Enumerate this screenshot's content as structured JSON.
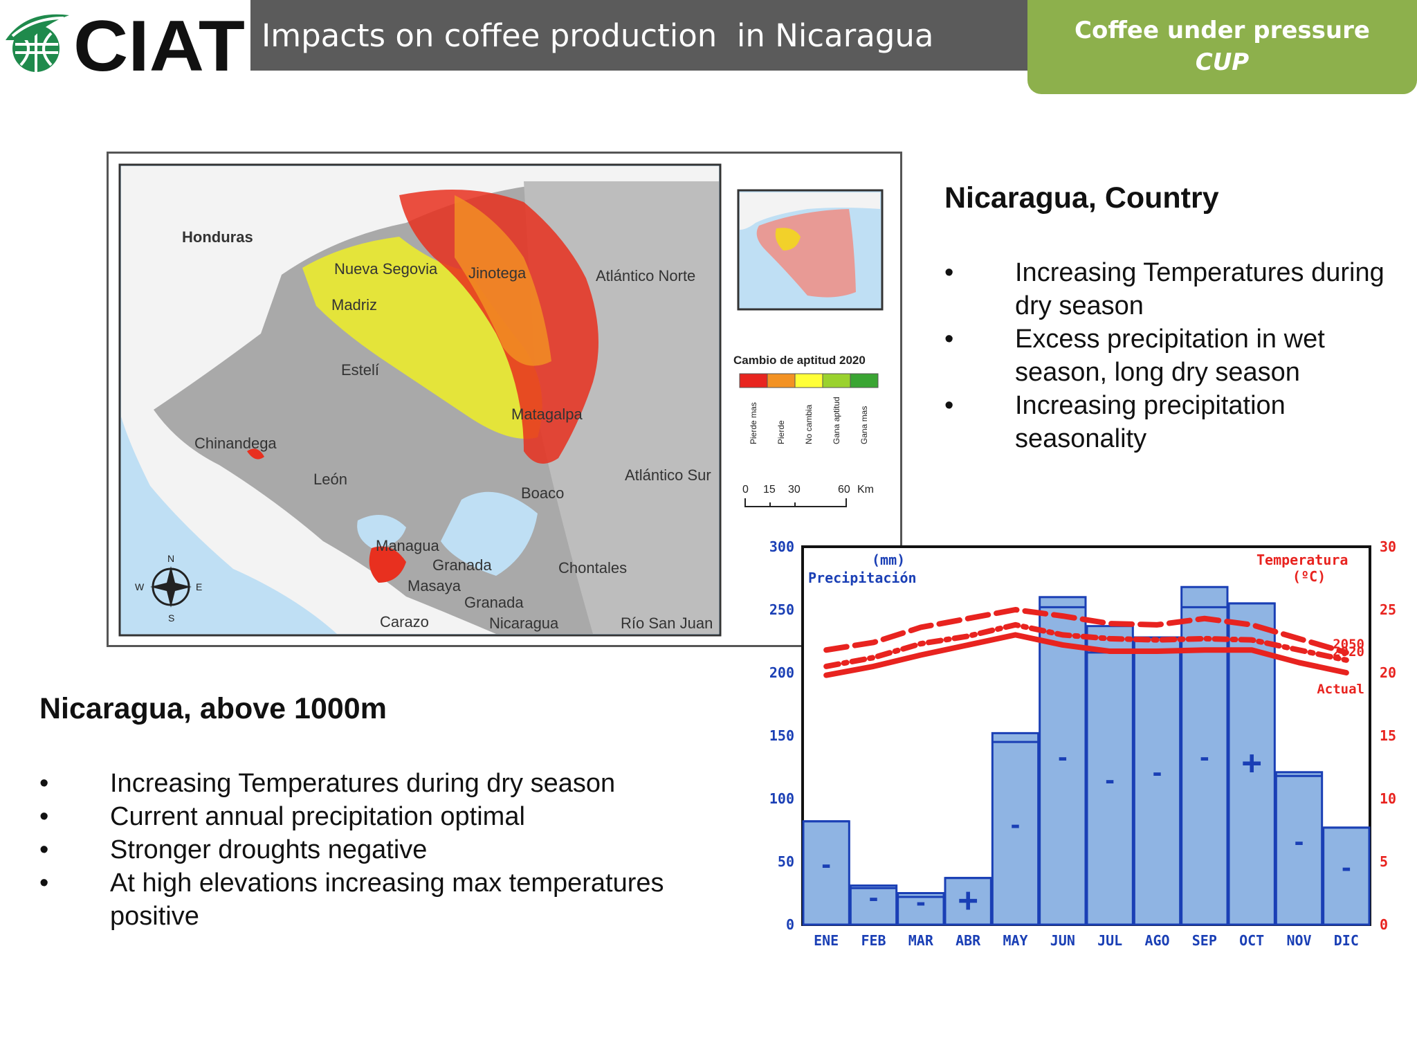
{
  "header": {
    "logo_text": "CIAT",
    "title": "Impacts on coffee production  in Nicaragua",
    "badge_line1": "Coffee under pressure",
    "badge_line2": "CUP",
    "colors": {
      "title_bar": "#5b5b5b",
      "badge": "#8db04c"
    }
  },
  "map": {
    "labels": {
      "honduras": "Honduras",
      "nueva_segovia": "Nueva Segovia",
      "jinotega": "Jinotega",
      "atlantico_norte": "Atlántico Norte",
      "madriz": "Madriz",
      "esteli": "Estelí",
      "matagalpa": "Matagalpa",
      "chinandega": "Chinandega",
      "leon": "León",
      "atlantico_sur": "Atlántico Sur",
      "boaco": "Boaco",
      "managua": "Managua",
      "granada": "Granada",
      "chontales": "Chontales",
      "masaya": "Masaya",
      "granada_nicaragua": "Granada",
      "nicaragua": "Nicaragua",
      "carazo": "Carazo",
      "rio_san_juan": "Río San Juan"
    },
    "compass": {
      "n": "N",
      "s": "S",
      "e": "E",
      "w": "W"
    },
    "legend": {
      "title": "Cambio de aptitud 2020",
      "classes": [
        {
          "label": "Pierde mas",
          "color": "#e8251f"
        },
        {
          "label": "Pierde",
          "color": "#f39223"
        },
        {
          "label": "No cambia",
          "color": "#ffff38"
        },
        {
          "label": "Gana aptitud",
          "color": "#9ad22e"
        },
        {
          "label": "Gana mas",
          "color": "#3aa533"
        }
      ]
    },
    "scale": {
      "ticks": [
        "0",
        "15",
        "30",
        "60"
      ],
      "unit": "Km"
    }
  },
  "country": {
    "heading": "Nicaragua, Country",
    "bullets": [
      "Increasing Temperatures during dry season",
      "Excess precipitation in wet season, long dry season",
      "Increasing precipitation seasonality"
    ]
  },
  "above": {
    "heading": "Nicaragua, above 1000m",
    "bullets": [
      "Increasing Temperatures during dry season",
      "Current annual precipitation optimal",
      "Stronger droughts negative",
      "At high elevations increasing max temperatures positive"
    ]
  },
  "bullet_symbol": "•",
  "chart_data": {
    "type": "bar",
    "categories": [
      "ENE",
      "FEB",
      "MAR",
      "ABR",
      "MAY",
      "JUN",
      "JUL",
      "AGO",
      "SEP",
      "OCT",
      "NOV",
      "DIC"
    ],
    "ylabel": "(mm)",
    "ylabel2": "Precipitación",
    "y2label": "Temperatura",
    "y2label2": "(ºC)",
    "ylim": [
      0,
      300
    ],
    "y2lim": [
      0,
      30
    ],
    "yticks": [
      0,
      50,
      100,
      150,
      200,
      250,
      300
    ],
    "y2ticks": [
      0,
      5,
      10,
      15,
      20,
      25,
      30
    ],
    "bars_current": [
      82,
      31,
      25,
      37,
      152,
      260,
      237,
      228,
      268,
      255,
      121,
      77
    ],
    "bars_future": [
      82,
      29,
      22,
      37,
      145,
      252,
      216,
      228,
      252,
      255,
      118,
      77
    ],
    "signs": [
      "-",
      "-",
      "-",
      "+",
      "-",
      "-",
      "-",
      "-",
      "-",
      "+",
      "-",
      "-"
    ],
    "series": [
      {
        "name": "Actual",
        "values": [
          19.8,
          20.5,
          21.4,
          22.2,
          23.0,
          22.2,
          21.7,
          21.7,
          21.8,
          21.8,
          20.8,
          20.0
        ]
      },
      {
        "name": "2020",
        "values": [
          20.5,
          21.2,
          22.3,
          22.9,
          23.8,
          23.0,
          22.7,
          22.6,
          22.7,
          22.6,
          21.8,
          21.0
        ]
      },
      {
        "name": "2050",
        "values": [
          21.8,
          22.4,
          23.6,
          24.3,
          25.0,
          24.5,
          23.9,
          23.8,
          24.3,
          23.8,
          22.7,
          21.6
        ]
      }
    ],
    "colors": {
      "bar_fill": "#8fb4e3",
      "bar_stroke": "#1a3fb5",
      "line": "#e8231f",
      "axis_left": "#1a3fb5",
      "axis_right": "#e8231f"
    }
  }
}
